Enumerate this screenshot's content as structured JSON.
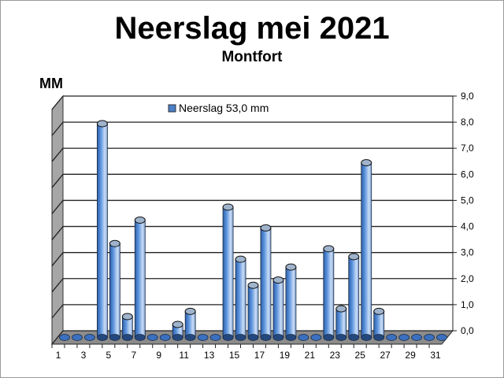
{
  "chart_data": {
    "type": "bar",
    "title": "Neerslag mei 2021",
    "subtitle": "Montfort",
    "ylabel": "MM",
    "xlabel": "",
    "ylim": [
      0,
      9
    ],
    "yticks": [
      "0,0",
      "1,0",
      "2,0",
      "3,0",
      "4,0",
      "5,0",
      "6,0",
      "7,0",
      "8,0",
      "9,0"
    ],
    "xtick_labels": [
      "1",
      "3",
      "5",
      "7",
      "9",
      "11",
      "13",
      "15",
      "17",
      "19",
      "21",
      "23",
      "25",
      "27",
      "29",
      "31"
    ],
    "grid": true,
    "legend_position": "top",
    "categories": [
      1,
      2,
      3,
      4,
      5,
      6,
      7,
      8,
      9,
      10,
      11,
      12,
      13,
      14,
      15,
      16,
      17,
      18,
      19,
      20,
      21,
      22,
      23,
      24,
      25,
      26,
      27,
      28,
      29,
      30,
      31
    ],
    "series": [
      {
        "name": "Neerslag 53,0 mm",
        "values": [
          0,
          0,
          0,
          8.2,
          3.6,
          0.8,
          4.5,
          0,
          0,
          0.5,
          1.0,
          0,
          0,
          5.0,
          3.0,
          2.0,
          4.2,
          2.2,
          2.7,
          0,
          0,
          3.4,
          1.1,
          3.1,
          6.7,
          1.0,
          0,
          0,
          0,
          0,
          0
        ],
        "color": "#4a7fc8"
      }
    ]
  }
}
